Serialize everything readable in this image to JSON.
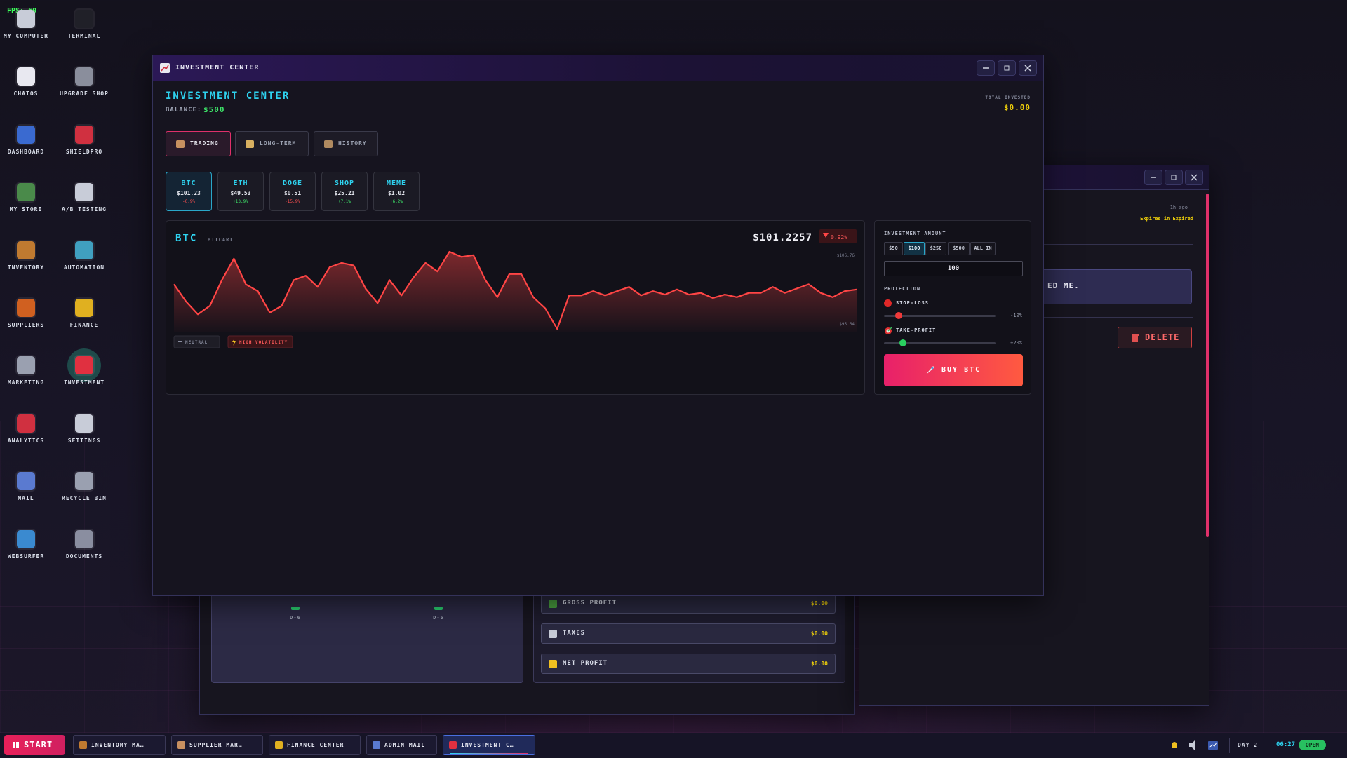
{
  "fps": "FPS: 60",
  "desktop_icons": [
    "MY COMPUTER",
    "TERMINAL",
    "CHATOS",
    "UPGRADE SHOP",
    "DASHBOARD",
    "SHIELDPRO",
    "MY STORE",
    "A/B TESTING",
    "INVENTORY",
    "AUTOMATION",
    "SUPPLIERS",
    "FINANCE",
    "MARKETING",
    "INVESTMENT",
    "ANALYTICS",
    "SETTINGS",
    "MAIL",
    "RECYCLE BIN",
    "WEBSURFER",
    "DOCUMENTS"
  ],
  "back_window_right": {
    "time": "1h ago",
    "expiry": "Expires in Expired",
    "message": "ED ME.",
    "delete_button": "DELETE"
  },
  "back_window_bottom": {
    "day_labels": [
      "D-6",
      "D-5"
    ],
    "rows": [
      {
        "label": "GROSS PROFIT",
        "value": "$0.00"
      },
      {
        "label": "TAXES",
        "value": "$0.00"
      },
      {
        "label": "NET PROFIT",
        "value": "$0.00"
      }
    ]
  },
  "main_window": {
    "title": "INVESTMENT CENTER",
    "heading": "INVESTMENT CENTER",
    "balance_label": "BALANCE:",
    "balance": "$500",
    "total_invested_label": "TOTAL INVESTED",
    "total_invested": "$0.00",
    "tabs": [
      "TRADING",
      "LONG-TERM",
      "HISTORY"
    ],
    "assets": [
      {
        "symbol": "BTC",
        "price": "$101.23",
        "change": "-0.9%"
      },
      {
        "symbol": "ETH",
        "price": "$49.53",
        "change": "+13.9%"
      },
      {
        "symbol": "DOGE",
        "price": "$0.51",
        "change": "-15.9%"
      },
      {
        "symbol": "SHOP",
        "price": "$25.21",
        "change": "+7.1%"
      },
      {
        "symbol": "MEME",
        "price": "$1.02",
        "change": "+6.2%"
      }
    ],
    "chart": {
      "type": "line",
      "symbol": "BTC",
      "name": "BITCART",
      "price": "$101.2257",
      "change": "0.92%",
      "color": "#ff4545",
      "values": [
        102.07,
        99.59,
        97.74,
        98.98,
        102.68,
        105.77,
        102.07,
        101.08,
        97.99,
        98.98,
        102.68,
        103.3,
        101.69,
        104.54,
        105.15,
        104.78,
        101.45,
        99.35,
        102.68,
        100.46,
        103.05,
        105.15,
        103.92,
        106.76,
        106.02,
        106.27,
        102.68,
        100.21,
        103.55,
        103.55,
        100.21,
        98.6,
        95.64,
        100.46,
        100.46,
        101.08,
        100.46,
        101.08,
        101.69,
        100.46,
        101.08,
        100.58,
        101.32,
        100.58,
        100.83,
        100.09,
        100.58,
        100.21,
        100.83,
        100.83,
        101.69,
        100.83,
        101.45,
        102.07,
        100.83,
        100.21,
        101.08,
        101.32
      ],
      "ylim": [
        95.64,
        106.76
      ],
      "yticks": [
        {
          "value": 106.76,
          "label": "$106.76"
        },
        {
          "value": 95.64,
          "label": "$95.64"
        }
      ],
      "badges": [
        "NEUTRAL",
        "HIGH VOLATILITY"
      ]
    },
    "order_panel": {
      "amount_label": "INVESTMENT AMOUNT",
      "presets": [
        "$50",
        "$100",
        "$250",
        "$500",
        "ALL IN"
      ],
      "amount": "100",
      "protection_label": "PROTECTION",
      "stop_loss_label": "STOP-LOSS",
      "stop_loss": "-10%",
      "take_profit_label": "TAKE-PROFIT",
      "take_profit": "+20%",
      "buy_button": "BUY BTC"
    }
  },
  "taskbar": {
    "start": "START",
    "tasks": [
      "INVENTORY MA…",
      "SUPPLIER MAR…",
      "FINANCE CENTER",
      "ADMIN MAIL",
      "INVESTMENT C…"
    ],
    "day": "DAY 2",
    "time": "06:27",
    "status": "OPEN"
  }
}
